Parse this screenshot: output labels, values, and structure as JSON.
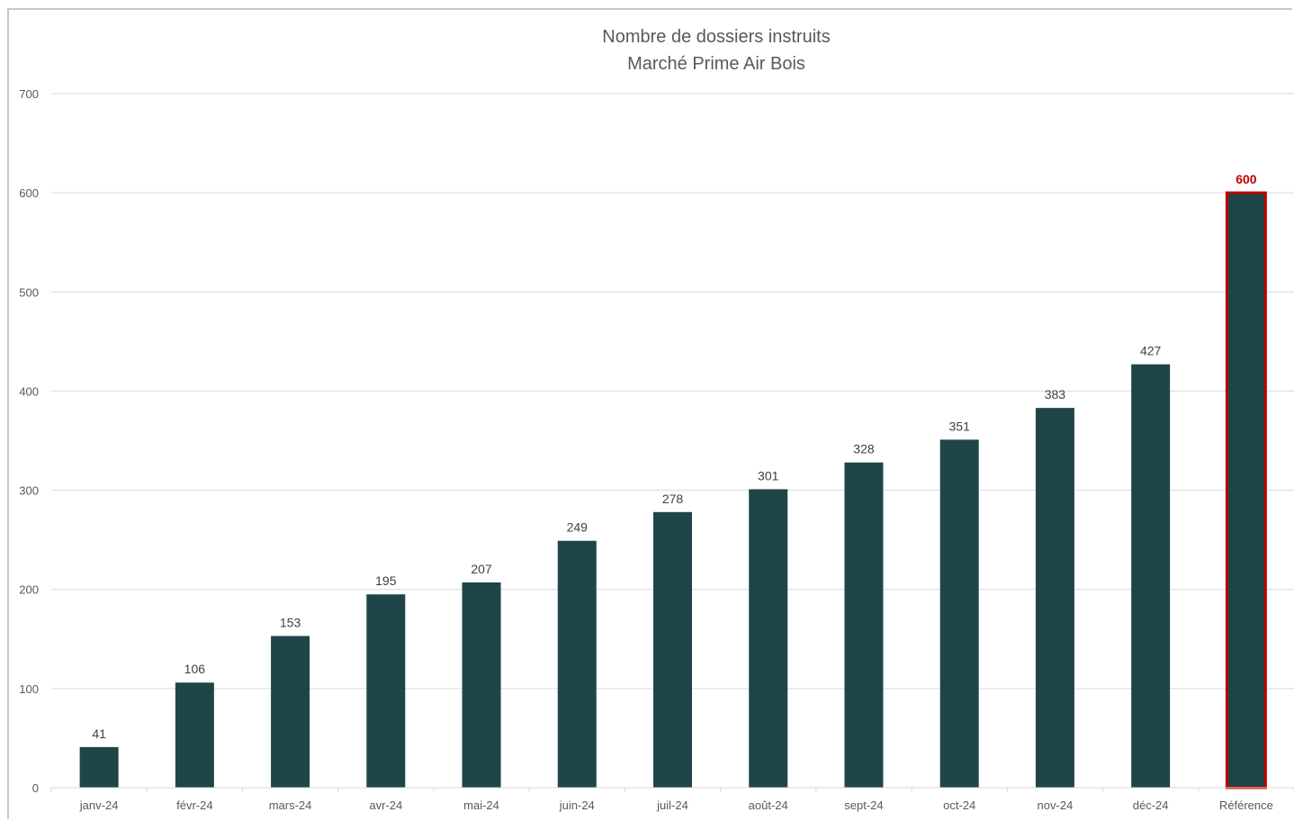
{
  "chart_data": {
    "type": "bar",
    "title": "Nombre de dossiers instruits",
    "subtitle": "Marché Prime Air Bois",
    "categories": [
      "janv-24",
      "févr-24",
      "mars-24",
      "avr-24",
      "mai-24",
      "juin-24",
      "juil-24",
      "août-24",
      "sept-24",
      "oct-24",
      "nov-24",
      "déc-24",
      "Référence"
    ],
    "values": [
      41,
      106,
      153,
      195,
      207,
      249,
      278,
      301,
      328,
      351,
      383,
      427,
      600
    ],
    "data_labels": [
      "41",
      "106",
      "153",
      "195",
      "207",
      "249",
      "278",
      "301",
      "328",
      "351",
      "383",
      "427",
      "600"
    ],
    "highlight_category": "Référence",
    "ylim": [
      0,
      700
    ],
    "yticks": [
      0,
      100,
      200,
      300,
      400,
      500,
      600,
      700
    ],
    "ytick_labels": [
      "0",
      "100",
      "200",
      "300",
      "400",
      "500",
      "600",
      "700"
    ],
    "grid": true,
    "legend": "none",
    "colors": {
      "bar": "#1f4549",
      "highlight_border": "#c00000",
      "highlight_label": "#c00000",
      "grid": "#d9d9d9",
      "axis_text": "#595959"
    }
  }
}
